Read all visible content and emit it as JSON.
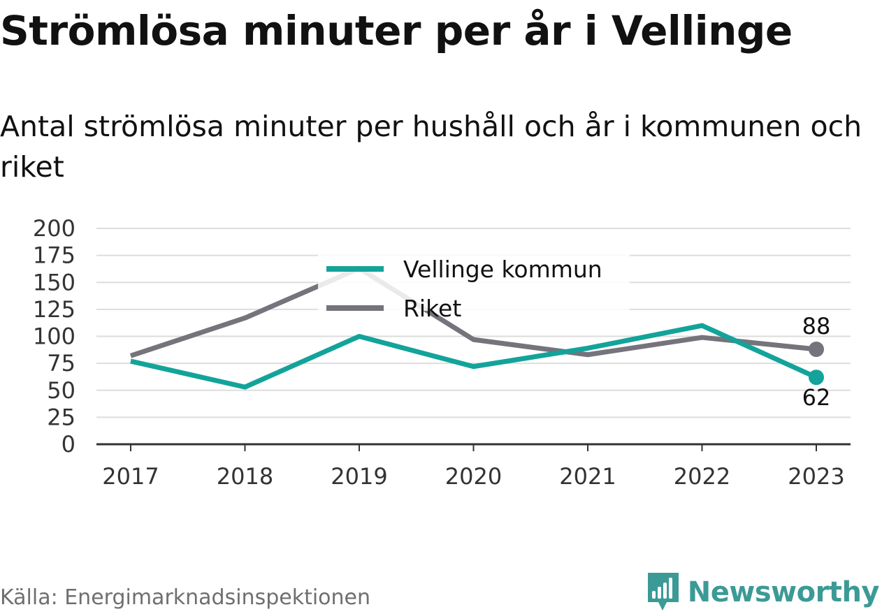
{
  "header": {
    "title": "Strömlösa minuter per år i Vellinge",
    "subtitle": "Antal strömlösa minuter per hushåll och år i kommunen och riket"
  },
  "footer": {
    "source": "Källa: Energimarknadsinspektionen",
    "brand": "Newsworthy",
    "brand_icon": "bar-chart-badge-icon"
  },
  "colors": {
    "vellinge": "#13a39a",
    "riket": "#75737b",
    "grid": "#dddddd",
    "axis": "#333333",
    "brand": "#3c9a96"
  },
  "chart_data": {
    "type": "line",
    "categories": [
      "2017",
      "2018",
      "2019",
      "2020",
      "2021",
      "2022",
      "2023"
    ],
    "series": [
      {
        "name": "Vellinge kommun",
        "values": [
          77,
          53,
          100,
          72,
          89,
          110,
          62
        ]
      },
      {
        "name": "Riket",
        "values": [
          82,
          117,
          163,
          97,
          83,
          99,
          88
        ]
      }
    ],
    "end_labels": [
      "62",
      "88"
    ],
    "ylim": [
      0,
      200
    ],
    "yticks": [
      0,
      25,
      50,
      75,
      100,
      125,
      150,
      175,
      200
    ],
    "grid": true,
    "legend_placement": "top-center"
  }
}
